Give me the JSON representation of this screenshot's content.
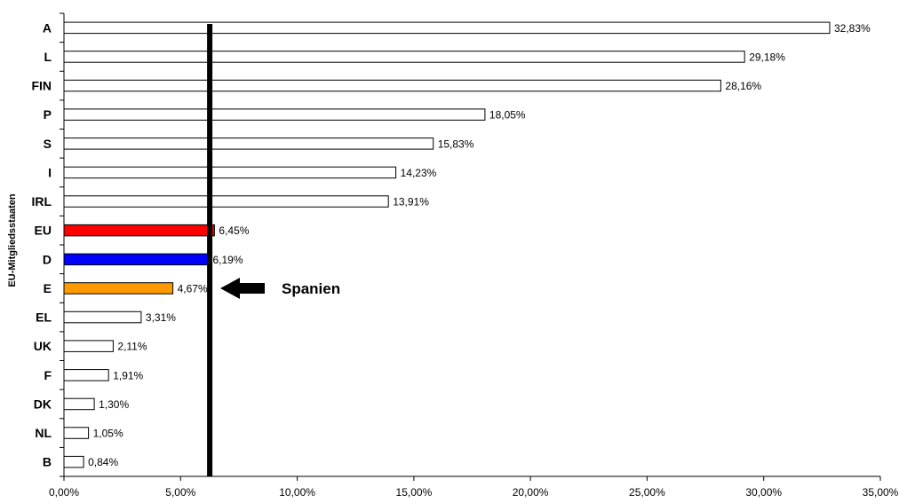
{
  "chart_data": {
    "type": "bar",
    "orientation": "horizontal",
    "categories": [
      "A",
      "L",
      "FIN",
      "P",
      "S",
      "I",
      "IRL",
      "EU",
      "D",
      "E",
      "EL",
      "UK",
      "F",
      "DK",
      "NL",
      "B"
    ],
    "values": [
      32.83,
      29.18,
      28.16,
      18.05,
      15.83,
      14.23,
      13.91,
      6.45,
      6.19,
      4.67,
      3.31,
      2.11,
      1.91,
      1.3,
      1.05,
      0.84
    ],
    "value_labels": [
      "32,83%",
      "29,18%",
      "28,16%",
      "18,05%",
      "15,83%",
      "14,23%",
      "13,91%",
      "6,45%",
      "6,19%",
      "4,67%",
      "3,31%",
      "2,11%",
      "1,91%",
      "1,30%",
      "1,05%",
      "0,84%"
    ],
    "bar_colors": [
      "#ffffff",
      "#ffffff",
      "#ffffff",
      "#ffffff",
      "#ffffff",
      "#ffffff",
      "#ffffff",
      "#ff0000",
      "#0000ff",
      "#ff9900",
      "#ffffff",
      "#ffffff",
      "#ffffff",
      "#ffffff",
      "#ffffff",
      "#ffffff"
    ],
    "xlim": [
      0,
      35
    ],
    "x_ticks": [
      0,
      5,
      10,
      15,
      20,
      25,
      30,
      35
    ],
    "x_tick_labels": [
      "0,00%",
      "5,00%",
      "10,00%",
      "15,00%",
      "20,00%",
      "25,00%",
      "30,00%",
      "35,00%"
    ],
    "ylabel": "EU-Mitgliedsstaaten",
    "xlabel": "",
    "title": "",
    "grid": false,
    "reference_line": {
      "value": 6.25,
      "color": "#000000"
    },
    "annotation": {
      "text": "Spanien",
      "target_category": "E",
      "icon": "left-arrow-icon"
    }
  }
}
